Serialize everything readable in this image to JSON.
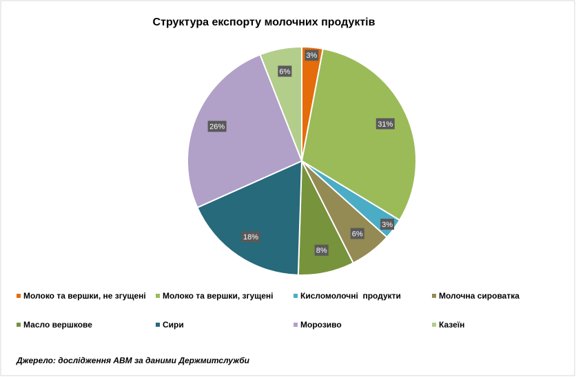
{
  "chart_data": {
    "type": "pie",
    "title": "Структура експорту молочних продуктів",
    "categories": [
      "Молоко та вершки, не згущені",
      "Молоко та вершки, згущені",
      "Кисломолочні  продукти",
      "Молочна сироватка",
      "Масло вершкове",
      "Сири",
      "Морозиво",
      "Казеїн"
    ],
    "values": [
      3,
      31,
      3,
      6,
      8,
      18,
      26,
      6
    ],
    "value_labels": [
      "3%",
      "31%",
      "3%",
      "6%",
      "8%",
      "18%",
      "26%",
      "6%"
    ],
    "colors": [
      "#e46c0a",
      "#9bbb59",
      "#4bacc6",
      "#948a54",
      "#77933c",
      "#266a7b",
      "#b1a0c7",
      "#b3cd8b"
    ],
    "legend": "bottom",
    "source": "Джерело: дослідження АВМ за даними Держмитслужби"
  }
}
